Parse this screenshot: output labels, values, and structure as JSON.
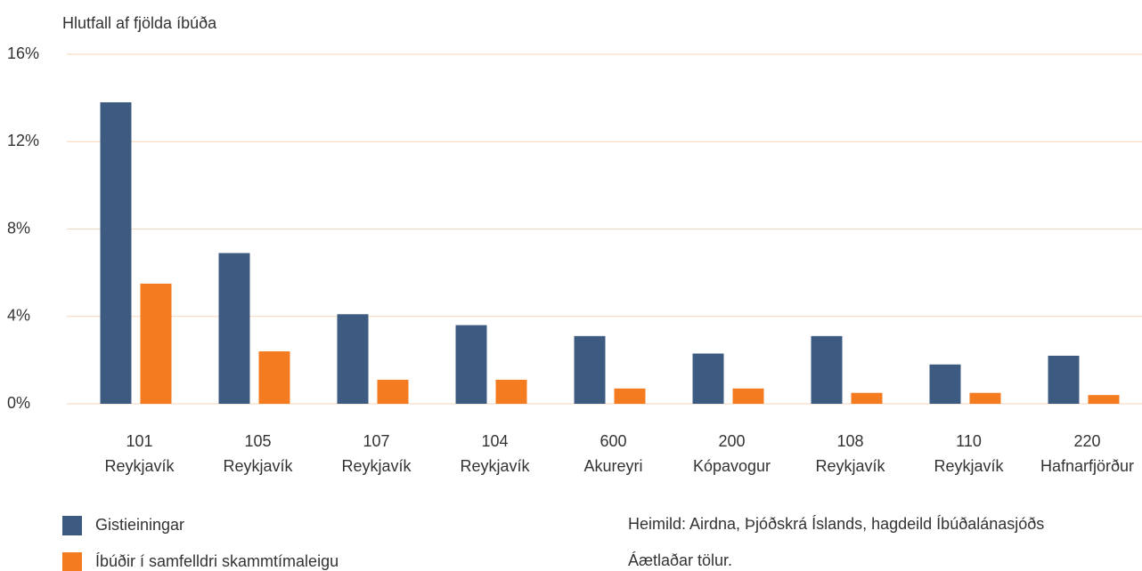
{
  "chart_data": {
    "type": "bar",
    "y_label": "Hlutfall af fjölda íbúða",
    "categories": [
      [
        "101",
        "Reykjavík"
      ],
      [
        "105",
        "Reykjavík"
      ],
      [
        "107",
        "Reykjavík"
      ],
      [
        "104",
        "Reykjavík"
      ],
      [
        "600",
        "Akureyri"
      ],
      [
        "200",
        "Kópavogur"
      ],
      [
        "108",
        "Reykjavík"
      ],
      [
        "110",
        "Reykjavík"
      ],
      [
        "220",
        "Hafnarfjörður"
      ]
    ],
    "series": [
      {
        "name": "Gistieiningar",
        "color": "#3d5b80",
        "values": [
          13.8,
          6.9,
          4.1,
          3.6,
          3.1,
          2.3,
          3.1,
          1.8,
          2.2
        ]
      },
      {
        "name": "Íbúðir í samfelldri skammtímaleigu",
        "color": "#f47b20",
        "values": [
          5.5,
          2.4,
          1.1,
          1.1,
          0.7,
          0.7,
          0.5,
          0.5,
          0.4
        ]
      }
    ],
    "ylim": [
      0,
      16
    ],
    "yticks": [
      {
        "value": 0,
        "label": "0%"
      },
      {
        "value": 4,
        "label": "4%"
      },
      {
        "value": 8,
        "label": "8%"
      },
      {
        "value": 12,
        "label": "12%"
      },
      {
        "value": 16,
        "label": "16%"
      }
    ],
    "grid": true,
    "source": "Heimild: Airdna, Þjóðskrá Íslands, hagdeild Íbúðalánasjóðs",
    "note": "Áætlaðar tölur."
  }
}
